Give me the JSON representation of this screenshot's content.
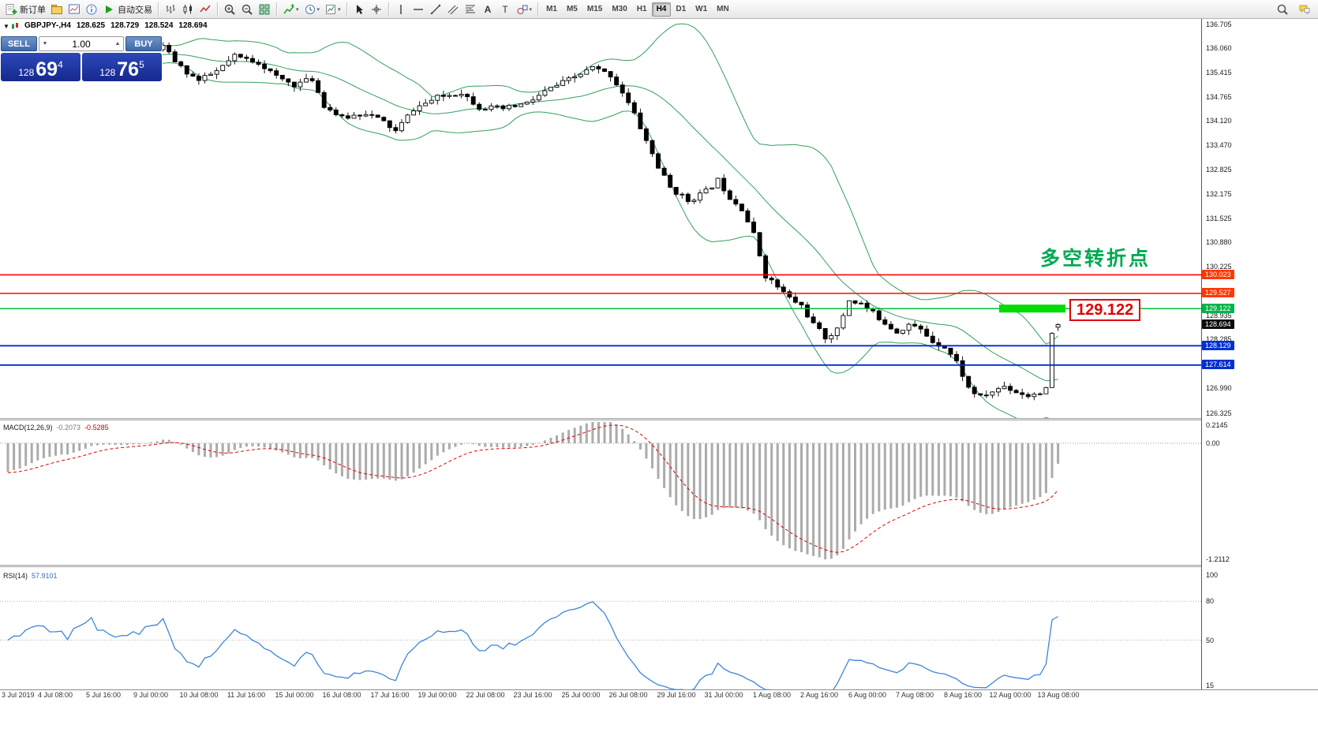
{
  "toolbar": {
    "items": [
      {
        "name": "new-order-button",
        "icon": "new-order",
        "label": "新订单"
      },
      {
        "name": "profiles-icon",
        "icon": "profiles"
      },
      {
        "name": "market-watch-icon",
        "icon": "market-watch"
      },
      {
        "name": "data-window-icon",
        "icon": "info"
      },
      {
        "name": "autotrading-button",
        "icon": "play",
        "label": "自动交易"
      },
      {
        "sep": true
      },
      {
        "name": "bar-chart-icon",
        "icon": "bar-chart"
      },
      {
        "name": "candlestick-chart-icon",
        "icon": "candle-chart"
      },
      {
        "name": "line-chart-icon",
        "icon": "line-chart"
      },
      {
        "sep": true
      },
      {
        "name": "zoom-in-icon",
        "icon": "zoom-in"
      },
      {
        "name": "zoom-out-icon",
        "icon": "zoom-out"
      },
      {
        "name": "tile-windows-icon",
        "icon": "tile"
      },
      {
        "sep": true
      },
      {
        "name": "indicators-icon",
        "icon": "indicators",
        "caret": true
      },
      {
        "name": "periods-icon",
        "icon": "clock",
        "caret": true
      },
      {
        "name": "templates-icon",
        "icon": "template",
        "caret": true
      },
      {
        "sep": true
      },
      {
        "name": "cursor-icon",
        "icon": "cursor"
      },
      {
        "name": "crosshair-icon",
        "icon": "crosshair"
      },
      {
        "sep": true
      },
      {
        "name": "vertical-line-icon",
        "icon": "vline"
      },
      {
        "name": "horizontal-line-icon",
        "icon": "hline"
      },
      {
        "name": "trendline-icon",
        "icon": "trendline"
      },
      {
        "name": "channel-icon",
        "icon": "channel"
      },
      {
        "name": "fibonacci-icon",
        "icon": "fibo"
      },
      {
        "name": "text-icon",
        "icon": "text"
      },
      {
        "name": "label-icon",
        "icon": "label"
      },
      {
        "name": "shapes-icon",
        "icon": "shapes",
        "caret": true
      },
      {
        "sep": true
      }
    ],
    "timeframes": [
      "M1",
      "M5",
      "M15",
      "M30",
      "H1",
      "H4",
      "D1",
      "W1",
      "MN"
    ],
    "active_timeframe": "H4",
    "right_icons": [
      {
        "name": "search-icon",
        "icon": "search"
      },
      {
        "name": "chat-icon",
        "icon": "chat"
      }
    ]
  },
  "chart_header": {
    "symbol": "GBPJPY-,H4",
    "open": "128.625",
    "high": "128.729",
    "low": "128.524",
    "close": "128.694"
  },
  "trade_panel": {
    "sell_label": "SELL",
    "buy_label": "BUY",
    "volume": "1.00",
    "bid": {
      "prefix": "128",
      "main": "69",
      "sup": "4"
    },
    "ask": {
      "prefix": "128",
      "main": "76",
      "sup": "5"
    }
  },
  "annotation": {
    "text": "多空转折点",
    "color": "#00a84f"
  },
  "callout": {
    "text": "129.122"
  },
  "price_axis": {
    "labels": [
      "136.705",
      "136.060",
      "135.415",
      "134.765",
      "134.120",
      "133.470",
      "132.825",
      "132.175",
      "131.525",
      "130.880",
      "130.225",
      "129.580",
      "128.935",
      "128.285",
      "127.640",
      "126.990",
      "126.325"
    ]
  },
  "price_tags": [
    {
      "label": "130.023",
      "price": 130.023,
      "color": "#ff3800"
    },
    {
      "label": "129.527",
      "price": 129.527,
      "color": "#ff3800"
    },
    {
      "label": "129.122",
      "price": 129.122,
      "color": "#00b44a"
    },
    {
      "label": "128.694",
      "price": 128.694,
      "color": "#0c0c0c"
    },
    {
      "label": "128.129",
      "price": 128.129,
      "color": "#0030d0"
    },
    {
      "label": "127.614",
      "price": 127.614,
      "color": "#0030d0"
    }
  ],
  "hlines": [
    {
      "name": "resistance-line-130023",
      "price": 130.023,
      "color": "#ff0000",
      "width": 1.6
    },
    {
      "name": "resistance-line-129527",
      "price": 129.527,
      "color": "#ff2000",
      "width": 1.6
    },
    {
      "name": "pivot-line-129122",
      "price": 129.122,
      "color": "#00bf40",
      "width": 1.5
    },
    {
      "name": "support-line-128129",
      "price": 128.129,
      "color": "#0028e0",
      "width": 1.8
    },
    {
      "name": "support-line-127614",
      "price": 127.614,
      "color": "#0028e0",
      "width": 1.8
    }
  ],
  "highlight_segment": {
    "price": 129.122,
    "color": "#00dc05"
  },
  "macd": {
    "title": "MACD(12,26,9)",
    "value_main": "-0.2073",
    "value_signal": "-0.5285",
    "axis_max": "0.2145",
    "axis_zero": "0.00",
    "axis_min": "-1.2112"
  },
  "rsi": {
    "title": "RSI(14)",
    "value": "57.9101",
    "axis_labels": [
      {
        "v": 100,
        "t": "100"
      },
      {
        "v": 80,
        "t": "80"
      },
      {
        "v": 50,
        "t": "50"
      },
      {
        "v": 15,
        "t": "15"
      }
    ],
    "levels": [
      80,
      50
    ]
  },
  "time_axis": [
    "3 Jul 2019",
    "4 Jul 08:00",
    "5 Jul 16:00",
    "9 Jul 00:00",
    "10 Jul 08:00",
    "11 Jul 16:00",
    "15 Jul 00:00",
    "16 Jul 08:00",
    "17 Jul 16:00",
    "19 Jul 00:00",
    "22 Jul 08:00",
    "23 Jul 16:00",
    "25 Jul 00:00",
    "26 Jul 08:00",
    "29 Jul 16:00",
    "31 Jul 00:00",
    "1 Aug 08:00",
    "2 Aug 16:00",
    "6 Aug 00:00",
    "7 Aug 08:00",
    "8 Aug 16:00",
    "12 Aug 00:00",
    "13 Aug 08:00"
  ],
  "chart_data": {
    "type": "candlestick",
    "symbol": "GBPJPY",
    "timeframe": "H4",
    "title": "GBPJPY-,H4",
    "visible_price_range": [
      126.325,
      136.705
    ],
    "candle_count": 177,
    "anchors": [
      [
        0,
        135.55
      ],
      [
        5,
        135.9
      ],
      [
        10,
        135.7
      ],
      [
        14,
        136.05
      ],
      [
        18,
        135.8
      ],
      [
        22,
        135.9
      ],
      [
        26,
        136.1
      ],
      [
        29,
        135.55
      ],
      [
        32,
        135.2
      ],
      [
        35,
        135.45
      ],
      [
        38,
        135.85
      ],
      [
        42,
        135.7
      ],
      [
        45,
        135.3
      ],
      [
        48,
        135.1
      ],
      [
        51,
        135.25
      ],
      [
        53,
        134.55
      ],
      [
        56,
        134.2
      ],
      [
        60,
        134.35
      ],
      [
        63,
        134.1
      ],
      [
        65,
        133.85
      ],
      [
        68,
        134.45
      ],
      [
        72,
        134.75
      ],
      [
        76,
        134.9
      ],
      [
        79,
        134.5
      ],
      [
        83,
        134.45
      ],
      [
        87,
        134.6
      ],
      [
        91,
        135.0
      ],
      [
        95,
        135.3
      ],
      [
        98,
        135.55
      ],
      [
        101,
        135.35
      ],
      [
        103,
        134.9
      ],
      [
        105,
        134.3
      ],
      [
        107,
        133.6
      ],
      [
        109,
        132.9
      ],
      [
        111,
        132.35
      ],
      [
        114,
        132.0
      ],
      [
        117,
        132.25
      ],
      [
        119,
        132.55
      ],
      [
        121,
        132.1
      ],
      [
        123,
        131.8
      ],
      [
        125,
        131.1
      ],
      [
        127,
        130.0
      ],
      [
        129,
        129.7
      ],
      [
        131,
        129.4
      ],
      [
        133,
        129.2
      ],
      [
        135,
        128.7
      ],
      [
        137,
        128.35
      ],
      [
        139,
        128.55
      ],
      [
        141,
        129.35
      ],
      [
        143,
        129.25
      ],
      [
        145,
        129.0
      ],
      [
        147,
        128.75
      ],
      [
        149,
        128.5
      ],
      [
        151,
        128.7
      ],
      [
        153,
        128.55
      ],
      [
        155,
        128.25
      ],
      [
        157,
        128.1
      ],
      [
        159,
        127.7
      ],
      [
        161,
        127.0
      ],
      [
        163,
        126.75
      ],
      [
        165,
        126.9
      ],
      [
        167,
        127.05
      ],
      [
        169,
        126.9
      ],
      [
        171,
        126.8
      ],
      [
        174,
        126.95
      ],
      [
        175,
        128.45
      ],
      [
        176,
        128.694
      ]
    ],
    "last_candle": {
      "o": 128.625,
      "h": 128.729,
      "l": 128.524,
      "c": 128.694
    },
    "current_price": 128.694,
    "key_levels": [
      130.023,
      129.527,
      129.122,
      128.129,
      127.614
    ],
    "indicators": [
      {
        "name": "Bollinger Bands",
        "period": 20,
        "deviation": 2,
        "color": "#33a05c"
      },
      {
        "name": "MACD",
        "params": [
          12,
          26,
          9
        ],
        "current": [
          -0.2073,
          -0.5285
        ]
      },
      {
        "name": "RSI",
        "period": 14,
        "current": 57.9101
      }
    ]
  }
}
